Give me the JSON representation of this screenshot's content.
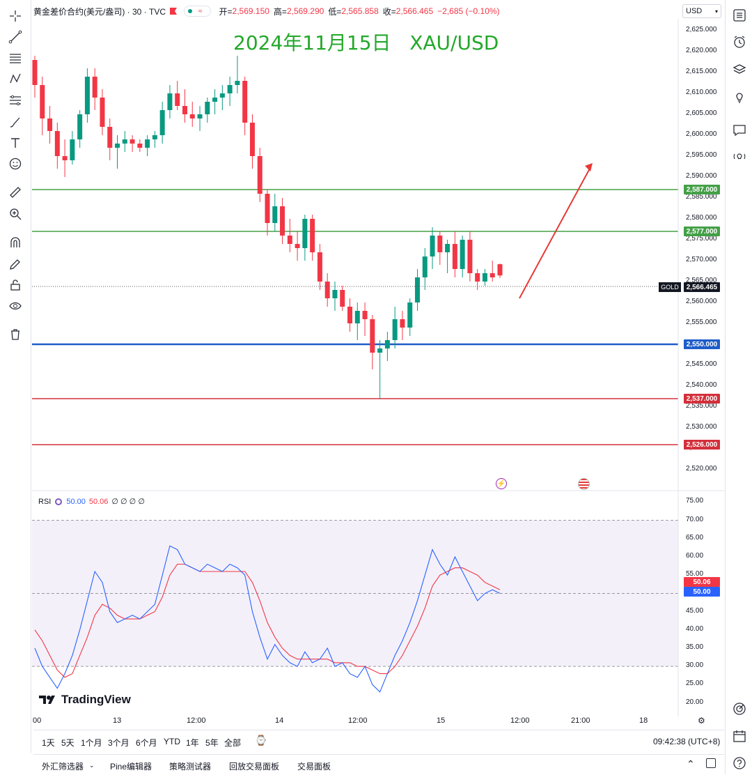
{
  "header": {
    "symbol_title": "黄金差价合约(美元/盎司) · 30 · TVC",
    "open_label": "开=",
    "open": "2,569.150",
    "high_label": "高=",
    "high": "2,569.290",
    "low_label": "低=",
    "low": "2,565.858",
    "close_label": "收=",
    "close": "2,566.465",
    "change": "−2,685 (−0.10%)",
    "flag_icon": "red-flag-icon"
  },
  "currency_select": {
    "value": "USD"
  },
  "annotation_title": "2024年11月15日   XAU/USD",
  "price_axis": {
    "ticks": [
      "2,625.000",
      "2,620.000",
      "2,615.000",
      "2,610.000",
      "2,605.000",
      "2,600.000",
      "2,595.000",
      "2,590.000",
      "2,585.000",
      "2,580.000",
      "2,575.000",
      "2,570.000",
      "2,565.000",
      "2,560.000",
      "2,555.000",
      "2,545.000",
      "2,540.000",
      "2,535.000",
      "2,530.000",
      "2,525.000",
      "2,520.000"
    ],
    "gold_tag": "GOLD",
    "current_price": "2,566.465"
  },
  "levels": [
    {
      "price": "2,587.000",
      "color": "#43a047"
    },
    {
      "price": "2,577.000",
      "color": "#43a047"
    },
    {
      "price": "2,550.000",
      "color": "#1e5cc8"
    },
    {
      "price": "2,537.000",
      "color": "#d32f3a"
    },
    {
      "price": "2,526.000",
      "color": "#d32f3a"
    }
  ],
  "rsi": {
    "label": "RSI",
    "value1": "50.00",
    "value2": "50.06",
    "extra": "∅ ∅ ∅ ∅",
    "axis_ticks": [
      "75.00",
      "70.00",
      "65.00",
      "60.00",
      "55.00",
      "45.00",
      "40.00",
      "35.00",
      "30.00",
      "25.00",
      "20.00"
    ],
    "badge_rsi": "50.00",
    "badge_ma": "50.06"
  },
  "watermark": "TradingView",
  "time_axis": [
    "00",
    "13",
    "12:00",
    "14",
    "12:00",
    "15",
    "12:00",
    "21:00",
    "18"
  ],
  "ranges": [
    "1天",
    "5天",
    "1个月",
    "3个月",
    "6个月",
    "YTD",
    "1年",
    "5年",
    "全部"
  ],
  "clock": "09:42:38 (UTC+8)",
  "footer_tabs": [
    "外汇筛选器",
    "Pine编辑器",
    "策略测试器",
    "回放交易面板",
    "交易面板"
  ],
  "colors": {
    "up": "#089981",
    "down": "#f23645",
    "rsi_line": "#2962ff",
    "rsi_ma": "#f23645",
    "annotation": "#22a829",
    "arrow": "#e53935"
  },
  "chart_data": {
    "type": "candlestick",
    "symbol": "XAU/USD",
    "ylim": [
      2517,
      2629
    ],
    "ohlc_approx": [
      [
        2618,
        2619,
        2609,
        2612
      ],
      [
        2612,
        2614,
        2600,
        2604
      ],
      [
        2604,
        2607,
        2598,
        2601
      ],
      [
        2601,
        2603,
        2592,
        2595
      ],
      [
        2595,
        2599,
        2590,
        2594
      ],
      [
        2594,
        2601,
        2593,
        2599
      ],
      [
        2599,
        2606,
        2597,
        2605
      ],
      [
        2605,
        2616,
        2603,
        2614
      ],
      [
        2614,
        2616,
        2606,
        2609
      ],
      [
        2609,
        2611,
        2600,
        2602
      ],
      [
        2602,
        2604,
        2594,
        2597
      ],
      [
        2597,
        2600,
        2592,
        2598
      ],
      [
        2598,
        2601,
        2596,
        2599
      ],
      [
        2599,
        2600,
        2596,
        2598
      ],
      [
        2598,
        2599,
        2596,
        2597
      ],
      [
        2597,
        2600,
        2595,
        2599
      ],
      [
        2599,
        2601,
        2597,
        2600
      ],
      [
        2600,
        2608,
        2598,
        2606
      ],
      [
        2606,
        2612,
        2604,
        2610
      ],
      [
        2610,
        2613,
        2606,
        2607
      ],
      [
        2607,
        2611,
        2603,
        2605
      ],
      [
        2605,
        2608,
        2602,
        2604
      ],
      [
        2604,
        2607,
        2601,
        2605
      ],
      [
        2605,
        2609,
        2603,
        2608
      ],
      [
        2608,
        2611,
        2605,
        2609
      ],
      [
        2609,
        2612,
        2606,
        2610
      ],
      [
        2610,
        2614,
        2607,
        2612
      ],
      [
        2612,
        2619,
        2610,
        2613
      ],
      [
        2613,
        2614,
        2600,
        2603
      ],
      [
        2603,
        2605,
        2592,
        2595
      ],
      [
        2595,
        2597,
        2584,
        2586
      ],
      [
        2586,
        2587,
        2576,
        2579
      ],
      [
        2579,
        2586,
        2577,
        2583
      ],
      [
        2583,
        2585,
        2574,
        2576
      ],
      [
        2576,
        2580,
        2572,
        2574
      ],
      [
        2574,
        2577,
        2570,
        2573
      ],
      [
        2573,
        2581,
        2570,
        2580
      ],
      [
        2580,
        2581,
        2570,
        2572
      ],
      [
        2572,
        2574,
        2563,
        2565
      ],
      [
        2565,
        2567,
        2559,
        2561
      ],
      [
        2561,
        2565,
        2558,
        2563
      ],
      [
        2563,
        2564,
        2558,
        2559
      ],
      [
        2559,
        2561,
        2553,
        2555
      ],
      [
        2555,
        2560,
        2551,
        2558
      ],
      [
        2558,
        2560,
        2552,
        2556
      ],
      [
        2556,
        2557,
        2544,
        2548
      ],
      [
        2548,
        2551,
        2537,
        2549
      ],
      [
        2549,
        2553,
        2546,
        2551
      ],
      [
        2551,
        2559,
        2549,
        2556
      ],
      [
        2556,
        2558,
        2551,
        2554
      ],
      [
        2554,
        2561,
        2552,
        2560
      ],
      [
        2560,
        2568,
        2558,
        2566
      ],
      [
        2566,
        2573,
        2563,
        2571
      ],
      [
        2571,
        2578,
        2568,
        2576
      ],
      [
        2576,
        2577,
        2569,
        2572
      ],
      [
        2572,
        2575,
        2567,
        2574
      ],
      [
        2574,
        2577,
        2566,
        2568
      ],
      [
        2568,
        2576,
        2566,
        2575
      ],
      [
        2575,
        2577,
        2565,
        2567
      ],
      [
        2567,
        2568,
        2563,
        2565
      ],
      [
        2565,
        2568,
        2564,
        2567
      ],
      [
        2567,
        2570,
        2565,
        2566
      ],
      [
        2569.15,
        2569.29,
        2565.858,
        2566.465
      ]
    ],
    "rsi_approx": [
      35,
      30,
      27,
      24,
      28,
      33,
      40,
      48,
      56,
      53,
      45,
      42,
      43,
      44,
      43,
      45,
      47,
      55,
      63,
      62,
      58,
      57,
      56,
      58,
      57,
      56,
      58,
      57,
      55,
      45,
      38,
      32,
      36,
      33,
      31,
      30,
      34,
      31,
      32,
      35,
      30,
      31,
      28,
      27,
      30,
      25,
      23,
      28,
      33,
      37,
      42,
      48,
      55,
      62,
      58,
      55,
      60,
      56,
      52,
      48,
      50,
      51,
      50
    ],
    "rsi_ma_approx": [
      40,
      37,
      33,
      29,
      27,
      28,
      33,
      38,
      44,
      47,
      46,
      44,
      43,
      43,
      43,
      44,
      45,
      49,
      55,
      58,
      58,
      57,
      56,
      56,
      56,
      56,
      56,
      56,
      56,
      53,
      48,
      42,
      38,
      35,
      33,
      32,
      32,
      32,
      32,
      32,
      31,
      31,
      31,
      30,
      30,
      29,
      28,
      28,
      30,
      33,
      37,
      41,
      46,
      52,
      55,
      56,
      57,
      57,
      56,
      55,
      53,
      52,
      51
    ],
    "rsi_bands": [
      30,
      70
    ]
  }
}
